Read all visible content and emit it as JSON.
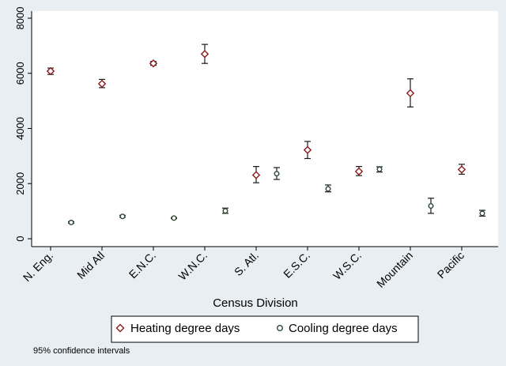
{
  "chart_data": {
    "type": "scatter",
    "xlabel": "Census Division",
    "ylabel": "",
    "ylim": [
      0,
      8000
    ],
    "y_ticks": [
      "0",
      "2000",
      "4000",
      "6000",
      "8000"
    ],
    "categories": [
      "N. Eng.",
      "Mid Atl",
      "E.N.C.",
      "W.N.C.",
      "S. Atl.",
      "E.S.C.",
      "W.S.C.",
      "Mountain",
      "Pacific"
    ],
    "grid": false,
    "legend_placement": "bottom",
    "note": "95% confidence intervals",
    "series": [
      {
        "name": "Heating degree days",
        "marker": "diamond",
        "values": [
          6080,
          5620,
          6360,
          6700,
          2310,
          3220,
          2440,
          5280,
          2510
        ],
        "ci_low": [
          5960,
          5480,
          6290,
          6360,
          2030,
          2910,
          2290,
          4780,
          2340
        ],
        "ci_high": [
          6190,
          5780,
          6430,
          7050,
          2620,
          3530,
          2620,
          5800,
          2700
        ]
      },
      {
        "name": "Cooling degree days",
        "marker": "circle",
        "values": [
          590,
          810,
          750,
          1010,
          2360,
          1810,
          2520,
          1190,
          920
        ],
        "ci_low": [
          560,
          780,
          730,
          920,
          2150,
          1700,
          2420,
          920,
          820
        ],
        "ci_high": [
          620,
          850,
          770,
          1110,
          2580,
          1950,
          2610,
          1470,
          1030
        ]
      }
    ]
  }
}
